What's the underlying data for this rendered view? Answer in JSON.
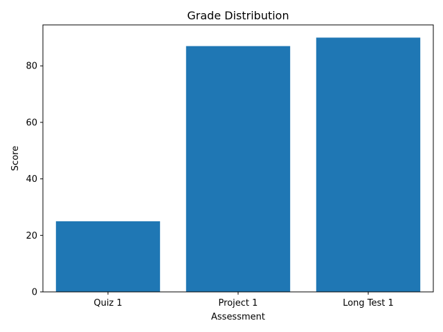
{
  "chart_data": {
    "type": "bar",
    "title": "Grade Distribution",
    "xlabel": "Assessment",
    "ylabel": "Score",
    "categories": [
      "Quiz 1",
      "Project 1",
      "Long Test 1"
    ],
    "values": [
      25,
      87,
      90
    ],
    "ylim": [
      0,
      94.5
    ],
    "yticks": [
      0,
      20,
      40,
      60,
      80
    ],
    "grid": false,
    "legend": "none",
    "bar_color": "#1f77b4"
  }
}
